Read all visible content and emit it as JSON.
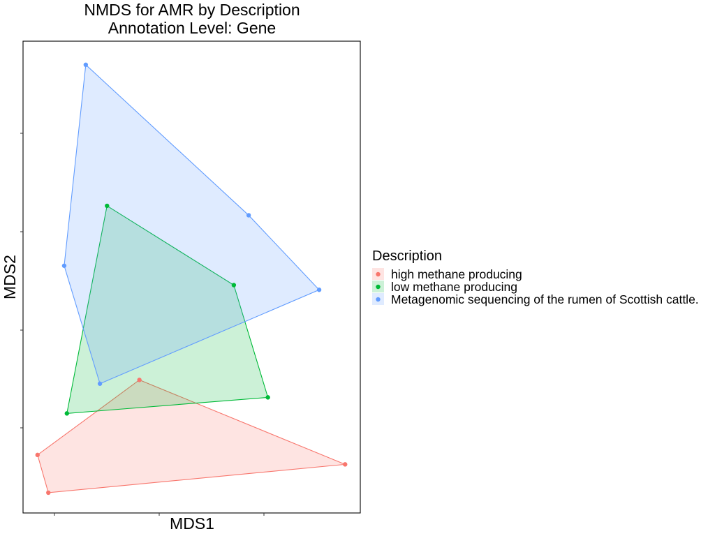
{
  "chart_data": {
    "type": "scatter",
    "title": "NMDS for AMR by Description",
    "subtitle": "Annotation Level: Gene",
    "xlabel": "MDS1",
    "ylabel": "MDS2",
    "xlim": [
      0,
      100
    ],
    "ylim": [
      0,
      100
    ],
    "hull_fill_opacity": 0.2,
    "legend": {
      "title": "Description",
      "position": "right"
    },
    "series": [
      {
        "name": "high methane producing",
        "color": "#F8766D",
        "points": [
          {
            "x": 34.5,
            "y": 28.2
          },
          {
            "x": 95.5,
            "y": 10.3
          },
          {
            "x": 7.5,
            "y": 4.3
          },
          {
            "x": 4.3,
            "y": 12.3
          }
        ]
      },
      {
        "name": "low methane producing",
        "color": "#00BA38",
        "points": [
          {
            "x": 24.9,
            "y": 65.1
          },
          {
            "x": 62.5,
            "y": 48.3
          },
          {
            "x": 72.6,
            "y": 24.5
          },
          {
            "x": 13.0,
            "y": 21.1
          }
        ]
      },
      {
        "name": "Metagenomic sequencing of the rumen of Scottish cattle.",
        "color": "#619CFF",
        "points": [
          {
            "x": 18.6,
            "y": 95.0
          },
          {
            "x": 66.9,
            "y": 63.1
          },
          {
            "x": 87.8,
            "y": 47.3
          },
          {
            "x": 22.8,
            "y": 27.4
          },
          {
            "x": 12.2,
            "y": 52.4
          }
        ]
      }
    ]
  }
}
